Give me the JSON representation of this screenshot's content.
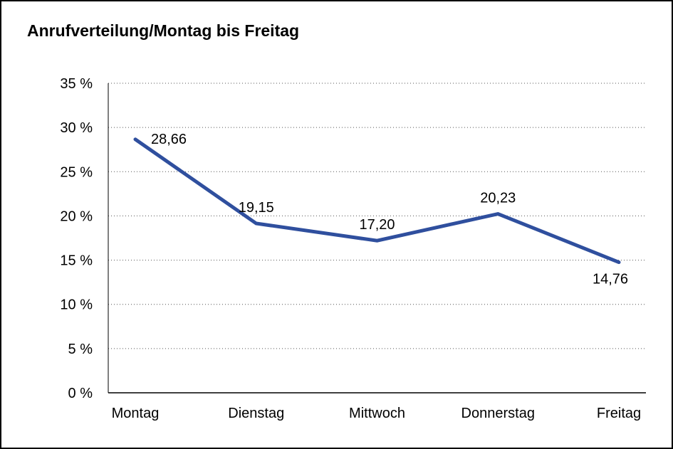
{
  "title": "Anrufverteilung/Montag bis Freitag",
  "colors": {
    "line": "#2F4F9E",
    "grid": "#555555",
    "axis": "#000000",
    "text": "#000000",
    "background": "#FFFFFF",
    "border": "#000000"
  },
  "chart_data": {
    "type": "line",
    "title": "Anrufverteilung/Montag bis Freitag",
    "categories": [
      "Montag",
      "Dienstag",
      "Mittwoch",
      "Donnerstag",
      "Freitag"
    ],
    "values": [
      28.66,
      19.15,
      17.2,
      20.23,
      14.76
    ],
    "value_labels": [
      "28,66",
      "19,15",
      "17,20",
      "20,23",
      "14,76"
    ],
    "label_positions": [
      "right",
      "above",
      "above",
      "above",
      "below"
    ],
    "xlabel": "",
    "ylabel": "",
    "ylim": [
      0,
      35
    ],
    "ytick_step": 5,
    "ytick_suffix": " %",
    "grid": "horizontal-dotted",
    "legend": "none"
  }
}
